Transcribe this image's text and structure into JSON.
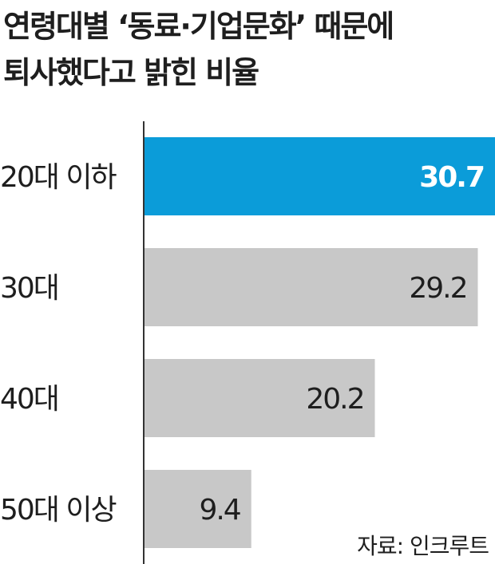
{
  "chart_data": {
    "type": "bar",
    "orientation": "horizontal",
    "title_lines": [
      "연령대별 ‘동료·기업문화’ 때문에",
      "퇴사했다고 밝힌 비율"
    ],
    "categories": [
      "20대 이하",
      "30대",
      "40대",
      "50대 이상"
    ],
    "values": [
      30.7,
      29.2,
      20.2,
      9.4
    ],
    "value_labels": [
      "30.7",
      "29.2",
      "20.2",
      "9.4"
    ],
    "xlim": [
      0,
      30.7
    ],
    "highlight_index": 0,
    "grid": false,
    "source": "자료: 인크루트"
  },
  "colors": {
    "highlight_bar": "#0b9cd9",
    "bar": "#c8c8c8",
    "axis": "#333333",
    "text": "#1e1e1e",
    "highlight_value_text": "#ffffff"
  }
}
